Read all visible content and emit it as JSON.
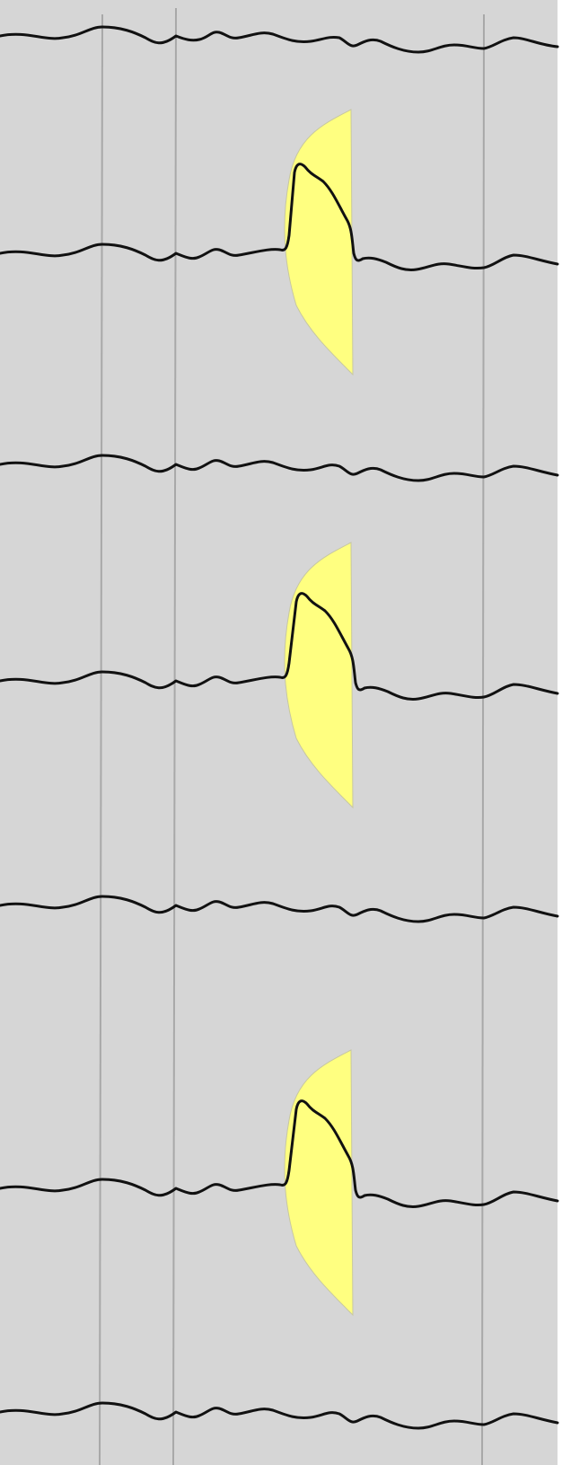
{
  "scene": {
    "description_free": true,
    "colors": {
      "background": "#d6d6d6",
      "border": "#ffffff",
      "wave_stroke": "#111111",
      "gridline": "#a8a8a8",
      "highlight_fill": "#ffff80",
      "highlight_edge": "#c8c8a0"
    },
    "trace_count": 7,
    "highlight_count": 3,
    "gridline_count": 3
  }
}
